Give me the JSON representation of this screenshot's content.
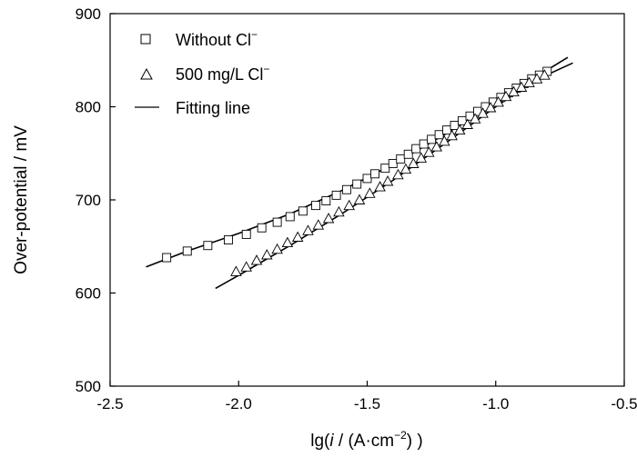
{
  "chart_data": {
    "type": "scatter",
    "title": "",
    "xlabel": {
      "prefix": "lg(",
      "italic": "i",
      "middle": " / (A·cm",
      "sup": "−2",
      "suffix": ") )"
    },
    "ylabel": "Over-potential / mV",
    "xlim": [
      -2.5,
      -0.5
    ],
    "ylim": [
      500,
      900
    ],
    "xticks": [
      -2.5,
      -2.0,
      -1.5,
      -1.0,
      -0.5
    ],
    "xtick_labels": [
      "-2.5",
      "-2.0",
      "-1.5",
      "-1.0",
      "-0.5"
    ],
    "yticks": [
      500,
      600,
      700,
      800,
      900
    ],
    "ytick_labels": [
      "500",
      "600",
      "700",
      "800",
      "900"
    ],
    "grid": false,
    "legend_position": "top-left",
    "legend": [
      {
        "label": "Without Cl",
        "sup": "−",
        "marker": "square"
      },
      {
        "label": "500 mg/L Cl",
        "sup": "−",
        "marker": "triangle"
      },
      {
        "label": "Fitting line",
        "sup": "",
        "marker": "line"
      }
    ],
    "series": [
      {
        "name": "Without Cl−",
        "marker": "square",
        "points": [
          [
            -2.28,
            638
          ],
          [
            -2.2,
            645
          ],
          [
            -2.12,
            651
          ],
          [
            -2.04,
            657
          ],
          [
            -1.97,
            663
          ],
          [
            -1.91,
            670
          ],
          [
            -1.85,
            676
          ],
          [
            -1.8,
            682
          ],
          [
            -1.75,
            688
          ],
          [
            -1.7,
            694
          ],
          [
            -1.66,
            699
          ],
          [
            -1.62,
            705
          ],
          [
            -1.58,
            711
          ],
          [
            -1.54,
            717
          ],
          [
            -1.5,
            723
          ],
          [
            -1.47,
            728
          ],
          [
            -1.43,
            734
          ],
          [
            -1.4,
            739
          ],
          [
            -1.37,
            744
          ],
          [
            -1.34,
            749
          ],
          [
            -1.31,
            755
          ],
          [
            -1.28,
            760
          ],
          [
            -1.25,
            765
          ],
          [
            -1.22,
            770
          ],
          [
            -1.19,
            775
          ],
          [
            -1.16,
            780
          ],
          [
            -1.13,
            785
          ],
          [
            -1.1,
            790
          ],
          [
            -1.07,
            795
          ],
          [
            -1.04,
            800
          ],
          [
            -1.01,
            805
          ],
          [
            -0.98,
            810
          ],
          [
            -0.95,
            815
          ],
          [
            -0.92,
            820
          ],
          [
            -0.89,
            825
          ],
          [
            -0.86,
            830
          ],
          [
            -0.83,
            834
          ],
          [
            -0.8,
            838
          ]
        ],
        "fit": [
          [
            -2.36,
            628
          ],
          [
            -2.2,
            645
          ],
          [
            -2.0,
            664
          ],
          [
            -1.8,
            685
          ],
          [
            -1.6,
            710
          ],
          [
            -1.4,
            738
          ],
          [
            -1.2,
            770
          ],
          [
            -1.0,
            804
          ],
          [
            -0.85,
            831
          ],
          [
            -0.72,
            853
          ]
        ]
      },
      {
        "name": "500 mg/L Cl−",
        "marker": "triangle",
        "points": [
          [
            -2.01,
            623
          ],
          [
            -1.97,
            628
          ],
          [
            -1.93,
            635
          ],
          [
            -1.89,
            641
          ],
          [
            -1.85,
            647
          ],
          [
            -1.81,
            654
          ],
          [
            -1.77,
            660
          ],
          [
            -1.73,
            667
          ],
          [
            -1.69,
            673
          ],
          [
            -1.65,
            680
          ],
          [
            -1.61,
            687
          ],
          [
            -1.57,
            694
          ],
          [
            -1.53,
            700
          ],
          [
            -1.49,
            707
          ],
          [
            -1.45,
            714
          ],
          [
            -1.42,
            720
          ],
          [
            -1.38,
            727
          ],
          [
            -1.35,
            733
          ],
          [
            -1.32,
            739
          ],
          [
            -1.29,
            745
          ],
          [
            -1.26,
            751
          ],
          [
            -1.23,
            757
          ],
          [
            -1.2,
            763
          ],
          [
            -1.17,
            769
          ],
          [
            -1.14,
            775
          ],
          [
            -1.11,
            781
          ],
          [
            -1.08,
            787
          ],
          [
            -1.05,
            793
          ],
          [
            -1.02,
            799
          ],
          [
            -0.99,
            805
          ],
          [
            -0.96,
            811
          ],
          [
            -0.93,
            816
          ],
          [
            -0.9,
            821
          ],
          [
            -0.87,
            826
          ],
          [
            -0.84,
            830
          ],
          [
            -0.81,
            834
          ]
        ],
        "fit": [
          [
            -2.09,
            605
          ],
          [
            -2.0,
            619
          ],
          [
            -1.8,
            651
          ],
          [
            -1.6,
            685
          ],
          [
            -1.4,
            721
          ],
          [
            -1.2,
            760
          ],
          [
            -1.0,
            800
          ],
          [
            -0.85,
            828
          ],
          [
            -0.7,
            847
          ]
        ]
      }
    ]
  }
}
